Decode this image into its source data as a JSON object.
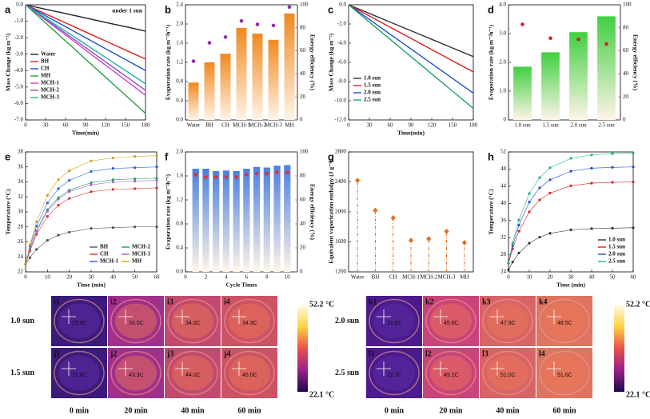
{
  "chart_data": [
    {
      "type": "line",
      "panel_label": "a",
      "annotation": "under 1 sun",
      "xlabel": "Time(min)",
      "ylabel": "Mass Change (kg m⁻²)",
      "x": [
        0,
        30,
        60,
        90,
        120,
        150,
        180
      ],
      "xlim": [
        0,
        180
      ],
      "xticks": [
        0,
        30,
        60,
        90,
        120,
        150,
        180
      ],
      "ylim": [
        -7,
        0
      ],
      "yticks": [
        {
          "value": 0,
          "label": "0.0"
        },
        {
          "value": -1,
          "label": "-1.0"
        },
        {
          "value": -2,
          "label": "-2.0"
        },
        {
          "value": -3,
          "label": "-3.0"
        },
        {
          "value": -4,
          "label": "-4.0"
        },
        {
          "value": -5,
          "label": "-5.0"
        },
        {
          "value": -6,
          "label": "-6.0"
        },
        {
          "value": -7,
          "label": "-7.0"
        }
      ],
      "legend": "left",
      "series": [
        {
          "name": "Water",
          "color": "#222222",
          "values": [
            0,
            -0.27,
            -0.53,
            -0.8,
            -1.07,
            -1.33,
            -1.6
          ]
        },
        {
          "name": "BH",
          "color": "#e02020",
          "values": [
            0,
            -0.55,
            -1.1,
            -1.65,
            -2.2,
            -2.75,
            -3.3
          ]
        },
        {
          "name": "CH",
          "color": "#1f4fd0",
          "values": [
            0,
            -0.67,
            -1.33,
            -2,
            -2.67,
            -3.33,
            -4
          ]
        },
        {
          "name": "MH",
          "color": "#20a040",
          "values": [
            0,
            -1.1,
            -2.2,
            -3.3,
            -4.4,
            -5.5,
            -6.6
          ]
        },
        {
          "name": "MCH-1",
          "color": "#d040d0",
          "values": [
            0,
            -0.92,
            -1.83,
            -2.75,
            -3.67,
            -4.58,
            -5.5
          ]
        },
        {
          "name": "MCH-2",
          "color": "#9050c0",
          "values": [
            0,
            -0.87,
            -1.73,
            -2.6,
            -3.47,
            -4.33,
            -5.2
          ]
        },
        {
          "name": "MCH-3",
          "color": "#20b0a0",
          "values": [
            0,
            -0.8,
            -1.6,
            -2.4,
            -3.2,
            -4,
            -4.8
          ]
        }
      ]
    },
    {
      "type": "bar",
      "panel_label": "b",
      "ylabel": "Evaporation rate (kg m⁻²h⁻¹)",
      "y2label": "Energy efficiency (%)",
      "categories": [
        "Water",
        "BH",
        "CH",
        "MCH-1",
        "MCH-2",
        "MCH-3",
        "MH"
      ],
      "values": [
        0.78,
        1.2,
        1.38,
        1.92,
        1.8,
        1.67,
        2.22
      ],
      "color": "#f08a20",
      "y2_values": [
        51,
        67,
        72,
        86,
        83,
        82,
        98
      ],
      "y2_color": "#9030b0",
      "ylim": [
        0,
        2.4
      ],
      "yticks": [
        {
          "value": 0,
          "label": "0.0"
        },
        {
          "value": 0.4,
          "label": "0.4"
        },
        {
          "value": 0.8,
          "label": "0.8"
        },
        {
          "value": 1.2,
          "label": "1.2"
        },
        {
          "value": 1.6,
          "label": "1.6"
        },
        {
          "value": 2,
          "label": "2.0"
        },
        {
          "value": 2.4,
          "label": "2.4"
        }
      ],
      "y2lim": [
        0,
        100
      ],
      "y2ticks": [
        0,
        20,
        40,
        60,
        80,
        100
      ]
    },
    {
      "type": "line",
      "panel_label": "c",
      "xlabel": "Time(min)",
      "ylabel": "Mass Change (kg m⁻²)",
      "x": [
        0,
        30,
        60,
        90,
        120,
        150,
        180
      ],
      "xlim": [
        0,
        180
      ],
      "xticks": [
        0,
        30,
        60,
        90,
        120,
        150,
        180
      ],
      "ylim": [
        -12,
        0
      ],
      "yticks": [
        {
          "value": 0,
          "label": "0.0"
        },
        {
          "value": -2,
          "label": "-2.0"
        },
        {
          "value": -4,
          "label": "-4.0"
        },
        {
          "value": -6,
          "label": "-6.0"
        },
        {
          "value": -8,
          "label": "-8.0"
        },
        {
          "value": -10,
          "label": "-10.0"
        },
        {
          "value": -12,
          "label": "-12.0"
        }
      ],
      "legend": "lower left",
      "series": [
        {
          "name": "1.0 sun",
          "color": "#333333",
          "values": [
            0,
            -0.9,
            -1.8,
            -2.7,
            -3.6,
            -4.5,
            -5.4
          ]
        },
        {
          "name": "1.5 sun",
          "color": "#e02020",
          "values": [
            0,
            -1.17,
            -2.33,
            -3.5,
            -4.67,
            -5.83,
            -7
          ]
        },
        {
          "name": "2.0 sun",
          "color": "#1f4fd0",
          "values": [
            0,
            -1.53,
            -3.07,
            -4.6,
            -6.13,
            -7.67,
            -9.2
          ]
        },
        {
          "name": "2.5 sun",
          "color": "#20a070",
          "values": [
            0,
            -1.8,
            -3.6,
            -5.4,
            -7.2,
            -9,
            -10.8
          ]
        }
      ]
    },
    {
      "type": "bar",
      "panel_label": "d",
      "ylabel": "Evaporation rate (kg m⁻²h⁻¹)",
      "y2label": "Energy efficiency (%)",
      "categories": [
        "1.0 sun",
        "1.5 sun",
        "2.0 sun",
        "2.5 sun"
      ],
      "values": [
        1.85,
        2.35,
        3.05,
        3.6
      ],
      "color": "#40d040",
      "y2_values": [
        83,
        71,
        70,
        66
      ],
      "y2_color": "#d02030",
      "ylim": [
        0,
        4
      ],
      "yticks": [
        0,
        {
          "value": 1,
          "label": "1.0"
        },
        {
          "value": 2,
          "label": "2.0"
        },
        {
          "value": 3,
          "label": "3.0"
        },
        {
          "value": 4,
          "label": "4.0"
        }
      ],
      "y2lim": [
        0,
        100
      ],
      "y2ticks": [
        0,
        20,
        40,
        60,
        80,
        100
      ]
    },
    {
      "type": "line",
      "panel_label": "e",
      "markers": true,
      "xlabel": "Time (min)",
      "ylabel": "Temperature (°C)",
      "x": [
        0,
        2,
        5,
        10,
        15,
        20,
        30,
        40,
        50,
        60
      ],
      "xlim": [
        0,
        60
      ],
      "xticks": [
        0,
        10,
        20,
        30,
        40,
        50,
        60
      ],
      "ylim": [
        22,
        38
      ],
      "yticks": [
        22,
        24,
        26,
        28,
        30,
        32,
        34,
        36,
        38
      ],
      "legend": "lower right",
      "legend_columns": 2,
      "series": [
        {
          "name": "BH",
          "color": "#555555",
          "values": [
            23,
            23.9,
            25,
            26.2,
            26.9,
            27.3,
            27.8,
            27.9,
            28,
            28
          ]
        },
        {
          "name": "CH",
          "color": "#e03030",
          "values": [
            23,
            24.8,
            27,
            29.4,
            30.9,
            31.8,
            32.7,
            33,
            33.1,
            33.2
          ]
        },
        {
          "name": "MCH-1",
          "color": "#2060e0",
          "values": [
            23,
            25.4,
            28.1,
            31.2,
            33.1,
            34.2,
            35.4,
            35.8,
            35.9,
            36
          ]
        },
        {
          "name": "MCH-2",
          "color": "#20a060",
          "values": [
            23,
            25.1,
            27.5,
            30.3,
            31.9,
            32.9,
            33.9,
            34.3,
            34.4,
            34.5
          ]
        },
        {
          "name": "MCH-3",
          "color": "#a060d0",
          "values": [
            23,
            25,
            27.4,
            30.1,
            31.7,
            32.7,
            33.6,
            34,
            34.1,
            34.2
          ]
        },
        {
          "name": "MH",
          "color": "#d0a020",
          "values": [
            23,
            25.6,
            28.7,
            32.2,
            34.3,
            35.5,
            36.8,
            37.2,
            37.4,
            37.5
          ]
        }
      ]
    },
    {
      "type": "bar",
      "panel_label": "f",
      "xlabel": "Cycle Times",
      "ylabel": "Evaporation rate (kg m⁻²h⁻¹)",
      "y2label": "Energy efficiency (%)",
      "x": [
        1,
        2,
        3,
        4,
        5,
        6,
        7,
        8,
        9,
        10
      ],
      "xlim": [
        0,
        11
      ],
      "xticks": [
        0,
        2,
        4,
        6,
        8,
        10
      ],
      "values": [
        1.72,
        1.72,
        1.68,
        1.69,
        1.68,
        1.72,
        1.75,
        1.74,
        1.77,
        1.78
      ],
      "color": "#4a80e0",
      "y2_values": [
        81,
        79,
        79,
        79,
        79,
        81,
        82,
        82,
        83,
        83
      ],
      "y2_color": "#e03030",
      "ylim": [
        0,
        2
      ],
      "yticks": [
        {
          "value": 0,
          "label": "0.0"
        },
        {
          "value": 0.4,
          "label": "0.4"
        },
        {
          "value": 0.8,
          "label": "0.8"
        },
        {
          "value": 1.2,
          "label": "1.2"
        },
        {
          "value": 1.6,
          "label": "1.6"
        },
        {
          "value": 2,
          "label": "2.0"
        }
      ],
      "y2lim": [
        0,
        100
      ],
      "y2ticks": [
        0,
        20,
        40,
        60,
        80,
        100
      ]
    },
    {
      "type": "stem",
      "panel_label": "g",
      "ylabel": "Equivalent vaporization enthalpy (J g⁻¹)",
      "categories": [
        "Water",
        "BH",
        "CH",
        "MCH-1",
        "MCH-2",
        "MCH-3",
        "MH"
      ],
      "values": [
        2420,
        2020,
        1920,
        1620,
        1640,
        1740,
        1590
      ],
      "color": "#e07020",
      "ylim": [
        1200,
        2800
      ],
      "yticks": [
        1200,
        1600,
        2000,
        2400,
        2800
      ]
    },
    {
      "type": "line",
      "panel_label": "h",
      "markers": true,
      "xlabel": "Time (min)",
      "ylabel": "Temperature (°C)",
      "x": [
        0,
        2,
        5,
        10,
        15,
        20,
        30,
        40,
        50,
        60
      ],
      "xlim": [
        0,
        60
      ],
      "xticks": [
        0,
        10,
        20,
        30,
        40,
        50,
        60
      ],
      "ylim": [
        24,
        52
      ],
      "yticks": [
        24,
        28,
        32,
        36,
        40,
        44,
        48,
        52
      ],
      "legend": "lower right",
      "legend_columns": 1,
      "series": [
        {
          "name": "1.0 sun",
          "color": "#333333",
          "values": [
            24.5,
            26.3,
            28.4,
            30.7,
            32.1,
            33,
            33.8,
            34.1,
            34.2,
            34.3
          ]
        },
        {
          "name": "1.5 sun",
          "color": "#e02020",
          "values": [
            26,
            29.4,
            33.5,
            38,
            40.8,
            42.4,
            44.1,
            44.7,
            44.9,
            45
          ]
        },
        {
          "name": "2.0 sun",
          "color": "#1f4fd0",
          "values": [
            26,
            30.1,
            34.9,
            40.3,
            43.6,
            45.5,
            47.5,
            48.2,
            48.4,
            48.5
          ]
        },
        {
          "name": "2.5 sun",
          "color": "#20b090",
          "values": [
            26,
            30.7,
            36.1,
            42.3,
            46,
            48.3,
            50.5,
            51.3,
            51.6,
            51.7
          ]
        }
      ]
    }
  ],
  "thermal_images": [
    {
      "columns": [
        "0 min",
        "20 min",
        "40 min",
        "60 min"
      ],
      "scale_max": "52.2 °C",
      "scale_min": "22.1 °C",
      "rows": [
        {
          "label": "1.0 sun",
          "cells": [
            {
              "id": "i1",
              "temperature": "23.0C"
            },
            {
              "id": "i2",
              "temperature": "33.0C"
            },
            {
              "id": "i3",
              "temperature": "34.0C"
            },
            {
              "id": "i4",
              "temperature": "34.3C"
            }
          ]
        },
        {
          "label": "1.5 sun",
          "cells": [
            {
              "id": "j1",
              "temperature": "22.6C"
            },
            {
              "id": "j2",
              "temperature": "43.3C"
            },
            {
              "id": "j3",
              "temperature": "44.0C"
            },
            {
              "id": "j4",
              "temperature": "45.0C"
            }
          ]
        }
      ]
    },
    {
      "columns": [
        "0 min",
        "20 min",
        "40 min",
        "60 min"
      ],
      "scale_max": "52.2 °C",
      "scale_min": "22.1 °C",
      "rows": [
        {
          "label": "2.0 sun",
          "cells": [
            {
              "id": "k1",
              "temperature": "22.8C"
            },
            {
              "id": "k2",
              "temperature": "45.8C"
            },
            {
              "id": "k3",
              "temperature": "47.9C"
            },
            {
              "id": "k4",
              "temperature": "48.5C"
            }
          ]
        },
        {
          "label": "2.5 sun",
          "cells": [
            {
              "id": "l1",
              "temperature": "22.7C"
            },
            {
              "id": "l2",
              "temperature": "49.2C"
            },
            {
              "id": "l3",
              "temperature": "51.0C"
            },
            {
              "id": "l4",
              "temperature": "51.6C"
            }
          ]
        }
      ]
    }
  ]
}
